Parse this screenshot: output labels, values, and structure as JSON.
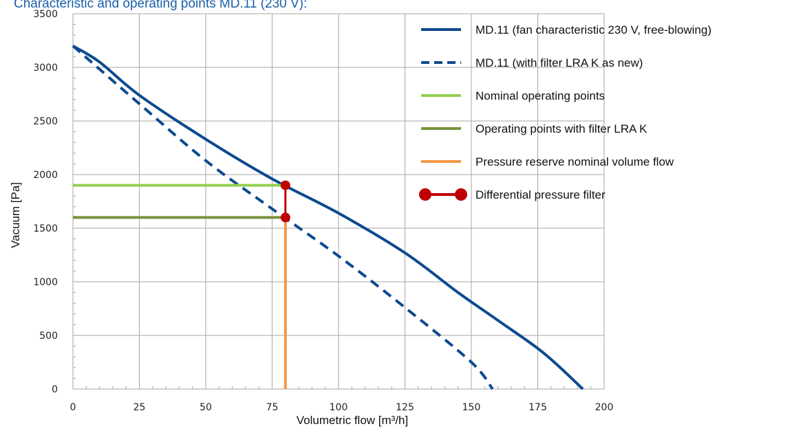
{
  "chart_data": {
    "type": "line",
    "title": "Characteristic and operating points MD.11 (230 V):",
    "xlabel": "Volumetric flow [m³/h]",
    "ylabel": "Vacuum [Pa]",
    "xlim": [
      0,
      200
    ],
    "ylim": [
      0,
      3500
    ],
    "xticks": [
      0,
      25,
      50,
      75,
      100,
      125,
      150,
      175,
      200
    ],
    "yticks": [
      0,
      500,
      1000,
      1500,
      2000,
      2500,
      3000,
      3500
    ],
    "grid": true,
    "legend_position": "top-right",
    "colors": {
      "fan": "#0d4a8f",
      "nominal": "#92d050",
      "filter_op": "#77933c",
      "reserve": "#f79646",
      "diff": "#c00000"
    },
    "series": [
      {
        "name": "MD.11 (fan characteristic 230 V, free-blowing)",
        "style": "solid",
        "color": "#0d4a8f",
        "x": [
          0,
          10,
          25,
          50,
          75,
          100,
          125,
          145,
          160,
          177,
          192
        ],
        "y": [
          3200,
          3050,
          2740,
          2330,
          1960,
          1640,
          1270,
          900,
          640,
          340,
          0
        ]
      },
      {
        "name": "MD.11 (with filter LRA K as new)",
        "style": "dashed",
        "color": "#0d4a8f",
        "x": [
          0,
          25,
          50,
          75,
          100,
          125,
          150,
          158
        ],
        "y": [
          3200,
          2660,
          2130,
          1680,
          1240,
          760,
          250,
          0
        ]
      },
      {
        "name": "Nominal operating points",
        "style": "solid",
        "color": "#92d050",
        "x": [
          0,
          80
        ],
        "y": [
          1900,
          1900
        ]
      },
      {
        "name": "Operating points with filter LRA K",
        "style": "solid",
        "color": "#77933c",
        "x": [
          0,
          80
        ],
        "y": [
          1600,
          1600
        ]
      },
      {
        "name": "Pressure reserve nominal volume flow",
        "style": "solid",
        "color": "#f79646",
        "x": [
          80,
          80
        ],
        "y": [
          0,
          1600
        ]
      },
      {
        "name": "Differential pressure filter",
        "style": "markers",
        "color": "#c00000",
        "x": [
          80,
          80
        ],
        "y": [
          1900,
          1600
        ]
      }
    ]
  }
}
